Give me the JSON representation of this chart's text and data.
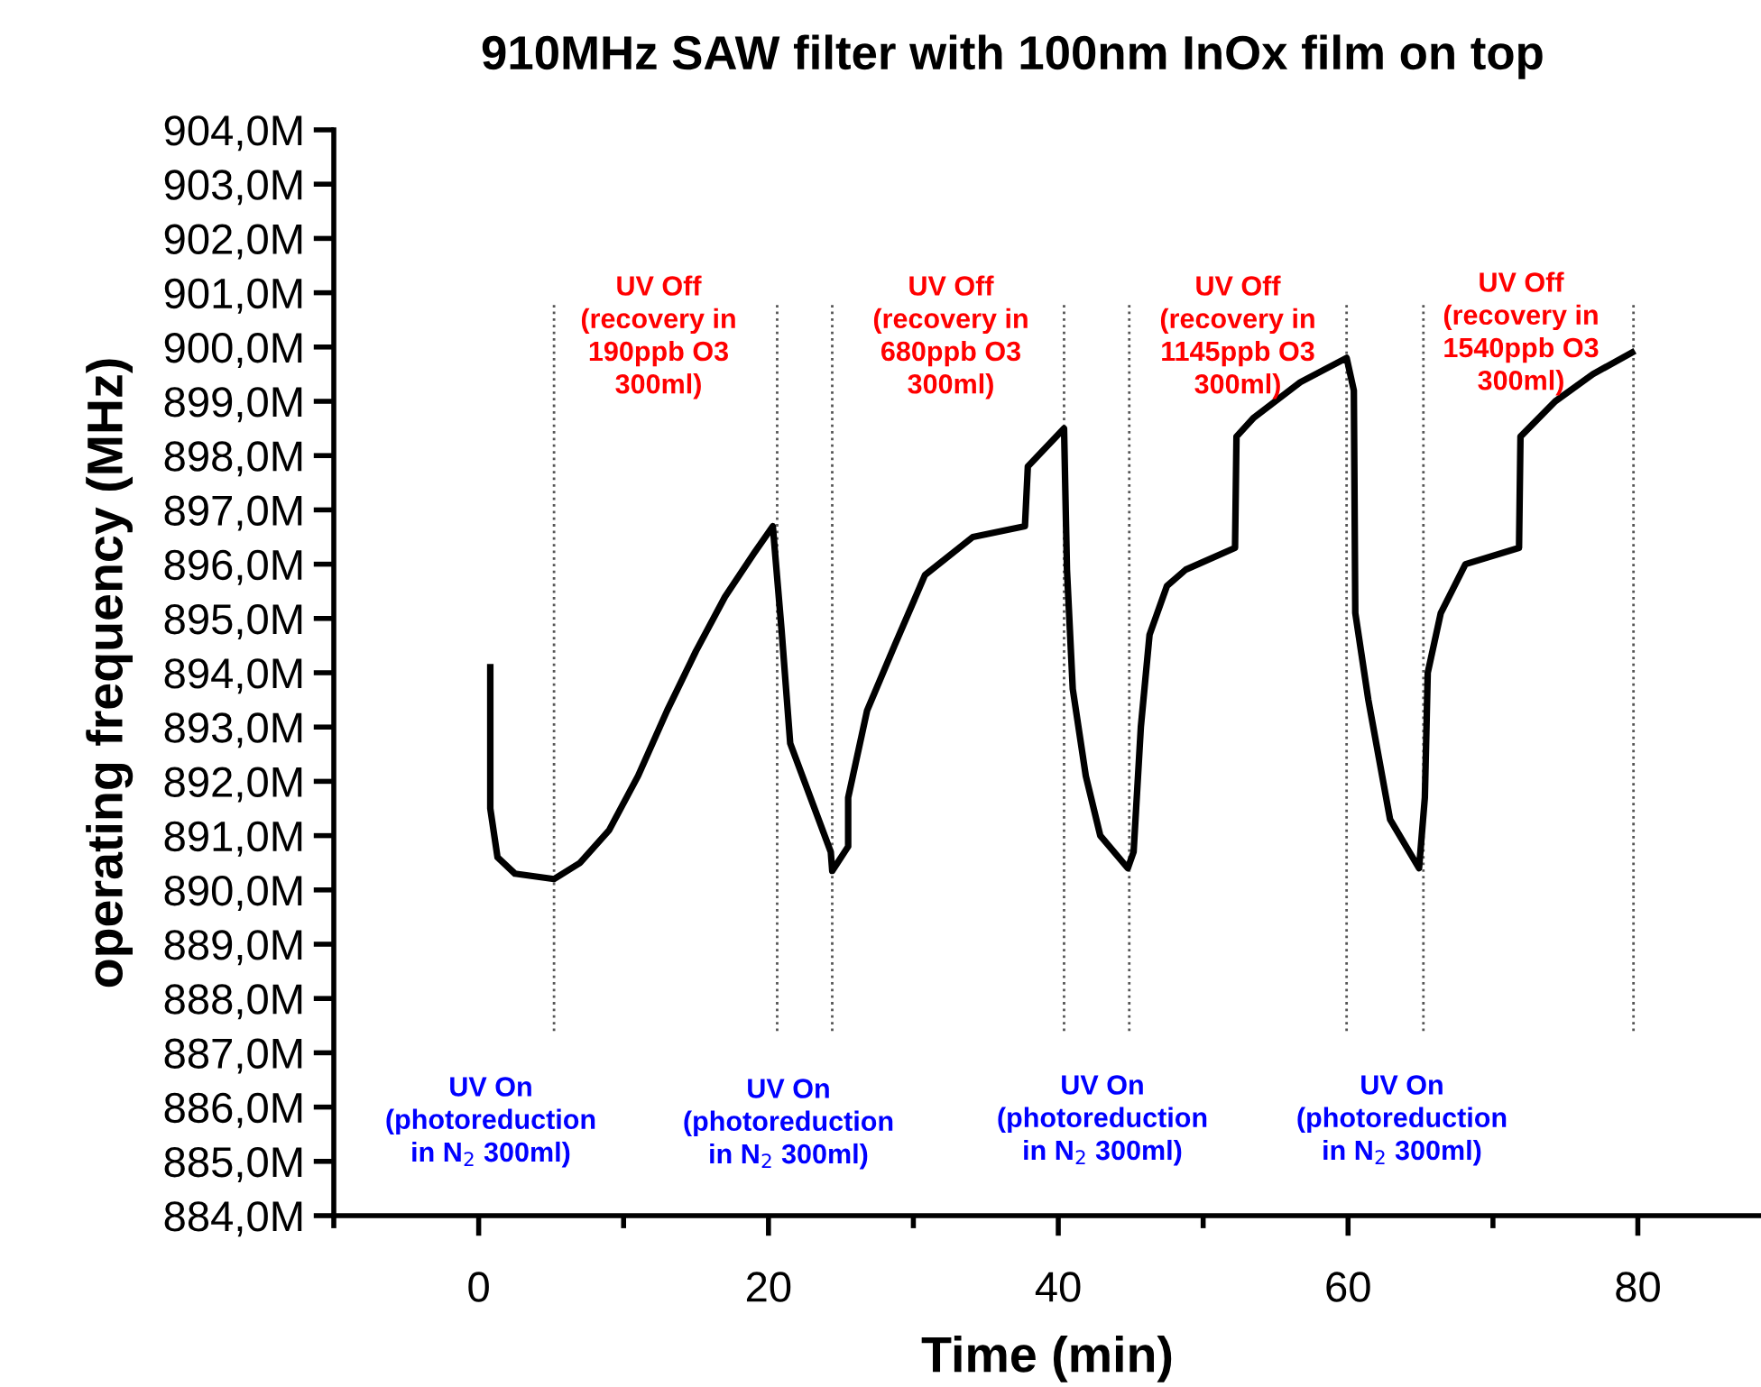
{
  "chart_data": {
    "type": "line",
    "title": "910MHz SAW filter with 100nm InOx film on top",
    "xlabel": "Time (min)",
    "ylabel": "operating frequency (MHz)",
    "series": [
      {
        "color": "#000000",
        "x": [
          0.8,
          0.8,
          1.3,
          2.5,
          5.2,
          7,
          9,
          11,
          13,
          15,
          17,
          19,
          20.3,
          20.9,
          21.5,
          24.3,
          24.4,
          25.5,
          25.5,
          26.8,
          28.7,
          30.8,
          34.1,
          37.7,
          37.9,
          40.4,
          40.6,
          41.0,
          41.9,
          42.9,
          44.8,
          45.2,
          45.7,
          46.3,
          47.5,
          48.8,
          52.2,
          52.3,
          53.5,
          56.7,
          59.9,
          60.4,
          60.5,
          61.4,
          62.9,
          64.9,
          65.3,
          65.5,
          66.4,
          68.1,
          71.8,
          71.9,
          74.3,
          76.9,
          79.6
        ],
        "values": [
          894.1,
          891.5,
          890.6,
          890.3,
          890.2,
          890.5,
          891.1,
          892.1,
          893.3,
          894.4,
          895.4,
          896.2,
          896.7,
          894.8,
          892.7,
          890.7,
          890.35,
          890.8,
          891.7,
          893.3,
          894.5,
          895.8,
          896.5,
          896.7,
          897.8,
          898.5,
          895.9,
          893.7,
          892.1,
          891.0,
          890.4,
          890.7,
          893.0,
          894.7,
          895.6,
          895.9,
          896.3,
          898.35,
          898.7,
          899.35,
          899.8,
          899.2,
          895.1,
          893.5,
          891.3,
          890.4,
          891.7,
          894.0,
          895.1,
          896.0,
          896.3,
          898.35,
          899.0,
          899.5,
          899.9
        ]
      }
    ],
    "xlim": [
      -10,
      88.5
    ],
    "xticks": [
      0,
      20,
      40,
      60,
      80
    ],
    "ylim": [
      884,
      904
    ],
    "yticks": [
      {
        "value": 884,
        "label": "884,0M"
      },
      {
        "value": 885,
        "label": "885,0M"
      },
      {
        "value": 886,
        "label": "886,0M"
      },
      {
        "value": 887,
        "label": "887,0M"
      },
      {
        "value": 888,
        "label": "888,0M"
      },
      {
        "value": 889,
        "label": "889,0M"
      },
      {
        "value": 890,
        "label": "890,0M"
      },
      {
        "value": 891,
        "label": "891,0M"
      },
      {
        "value": 892,
        "label": "892,0M"
      },
      {
        "value": 893,
        "label": "893,0M"
      },
      {
        "value": 894,
        "label": "894,0M"
      },
      {
        "value": 895,
        "label": "895,0M"
      },
      {
        "value": 896,
        "label": "896,0M"
      },
      {
        "value": 897,
        "label": "897,0M"
      },
      {
        "value": 898,
        "label": "898,0M"
      },
      {
        "value": 899,
        "label": "899,0M"
      },
      {
        "value": 900,
        "label": "900,0M"
      },
      {
        "value": 901,
        "label": "901,0M"
      },
      {
        "value": 902,
        "label": "902,0M"
      },
      {
        "value": 903,
        "label": "903,0M"
      },
      {
        "value": 904,
        "label": "904,0M"
      }
    ],
    "ref_lines": [
      {
        "axis": "x",
        "value": 5.2,
        "color": "#555555",
        "line_style": "dotted"
      },
      {
        "axis": "x",
        "value": 20.6,
        "color": "#555555",
        "line_style": "dotted"
      },
      {
        "axis": "x",
        "value": 24.4,
        "color": "#555555",
        "line_style": "dotted"
      },
      {
        "axis": "x",
        "value": 40.4,
        "color": "#555555",
        "line_style": "dotted"
      },
      {
        "axis": "x",
        "value": 44.9,
        "color": "#555555",
        "line_style": "dotted"
      },
      {
        "axis": "x",
        "value": 59.9,
        "color": "#555555",
        "line_style": "dotted"
      },
      {
        "axis": "x",
        "value": 65.2,
        "color": "#555555",
        "line_style": "dotted"
      },
      {
        "axis": "x",
        "value": 79.7,
        "color": "#555555",
        "line_style": "dotted"
      }
    ],
    "annotations": [
      "UV Off\n(recovery in\n190ppb O3\n300ml)",
      "UV Off\n(recovery in\n680ppb O3\n300ml)",
      "UV Off\n(recovery in\n1145ppb O3\n300ml)",
      "UV Off\n(recovery in\n1540ppb O3\n300ml)",
      "UV On\n(photoreduction\nin N$_{2}$ 300ml)",
      "UV On\n(photoreduction\nin N$_{2}$ 300ml)",
      "UV On\n(photoreduction\nin N$_{2}$ 300ml)",
      "UV On\n(photoreduction\nin N$_{2}$ 300ml)"
    ],
    "grid": false,
    "legend": false,
    "marker": "none",
    "line_style": "solid"
  }
}
